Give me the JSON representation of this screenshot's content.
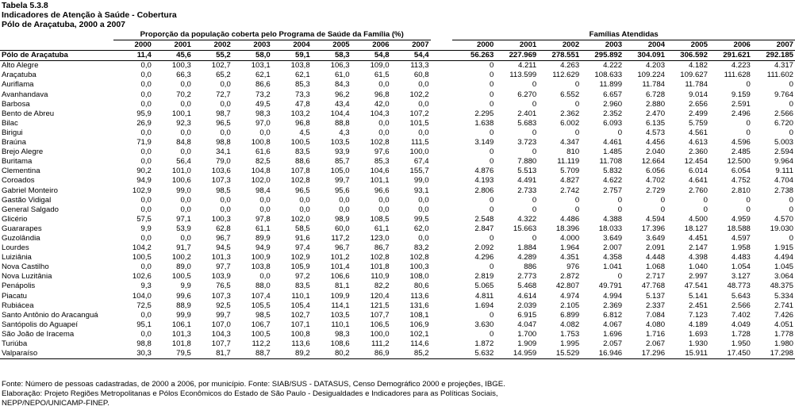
{
  "header": {
    "table_number": "Tabela 5.3.8",
    "title": "Indicadores de Atenção à Saúde - Cobertura",
    "subtitle": "Pólo de Araçatuba, 2000 a 2007"
  },
  "table": {
    "group1_title": "Proporção da população coberta pelo Programa de Saúde da Família (%)",
    "group2_title": "Famílias Atendidas",
    "years": [
      "2000",
      "2001",
      "2002",
      "2003",
      "2004",
      "2005",
      "2006",
      "2007"
    ],
    "total": {
      "name": "Pólo de Araçatuba",
      "pct": [
        "11,4",
        "45,6",
        "55,2",
        "58,0",
        "59,1",
        "58,3",
        "54,8",
        "54,4"
      ],
      "fam": [
        "56.263",
        "227.969",
        "278.551",
        "295.892",
        "304.091",
        "306.592",
        "291.621",
        "292.185"
      ]
    },
    "rows": [
      {
        "name": "Alto Alegre",
        "pct": [
          "0,0",
          "100,3",
          "102,7",
          "103,1",
          "103,8",
          "106,3",
          "109,0",
          "113,3"
        ],
        "fam": [
          "0",
          "4.211",
          "4.263",
          "4.222",
          "4.203",
          "4.182",
          "4.223",
          "4.317"
        ]
      },
      {
        "name": "Araçatuba",
        "pct": [
          "0,0",
          "66,3",
          "65,2",
          "62,1",
          "62,1",
          "61,0",
          "61,5",
          "60,8"
        ],
        "fam": [
          "0",
          "113.599",
          "112.629",
          "108.633",
          "109.224",
          "109.627",
          "111.628",
          "111.602"
        ]
      },
      {
        "name": "Auriflama",
        "pct": [
          "0,0",
          "0,0",
          "0,0",
          "86,6",
          "85,3",
          "84,3",
          "0,0",
          "0,0"
        ],
        "fam": [
          "0",
          "0",
          "0",
          "11.899",
          "11.784",
          "11.784",
          "0",
          "0"
        ]
      },
      {
        "name": "Avanhandava",
        "pct": [
          "0,0",
          "70,2",
          "72,7",
          "73,2",
          "73,3",
          "96,2",
          "96,8",
          "102,2"
        ],
        "fam": [
          "0",
          "6.270",
          "6.552",
          "6.657",
          "6.728",
          "9.014",
          "9.159",
          "9.764"
        ]
      },
      {
        "name": "Barbosa",
        "pct": [
          "0,0",
          "0,0",
          "0,0",
          "49,5",
          "47,8",
          "43,4",
          "42,0",
          "0,0"
        ],
        "fam": [
          "0",
          "0",
          "0",
          "2.960",
          "2.880",
          "2.656",
          "2.591",
          "0"
        ]
      },
      {
        "name": "Bento de Abreu",
        "pct": [
          "95,9",
          "100,1",
          "98,7",
          "98,3",
          "103,2",
          "104,4",
          "104,3",
          "107,2"
        ],
        "fam": [
          "2.295",
          "2.401",
          "2.362",
          "2.352",
          "2.470",
          "2.499",
          "2.496",
          "2.566"
        ]
      },
      {
        "name": "Bilac",
        "pct": [
          "26,9",
          "92,3",
          "96,5",
          "97,0",
          "96,8",
          "88,8",
          "0,0",
          "101,5"
        ],
        "fam": [
          "1.638",
          "5.683",
          "6.002",
          "6.093",
          "6.135",
          "5.759",
          "0",
          "6.720"
        ]
      },
      {
        "name": "Birigui",
        "pct": [
          "0,0",
          "0,0",
          "0,0",
          "0,0",
          "4,5",
          "4,3",
          "0,0",
          "0,0"
        ],
        "fam": [
          "0",
          "0",
          "0",
          "0",
          "4.573",
          "4.561",
          "0",
          "0"
        ]
      },
      {
        "name": "Braúna",
        "pct": [
          "71,9",
          "84,8",
          "98,8",
          "100,8",
          "100,5",
          "103,5",
          "102,8",
          "111,5"
        ],
        "fam": [
          "3.149",
          "3.723",
          "4.347",
          "4.461",
          "4.456",
          "4.613",
          "4.596",
          "5.003"
        ]
      },
      {
        "name": "Brejo Alegre",
        "pct": [
          "0,0",
          "0,0",
          "34,1",
          "61,6",
          "83,5",
          "93,9",
          "97,6",
          "100,0"
        ],
        "fam": [
          "0",
          "0",
          "810",
          "1.485",
          "2.040",
          "2.360",
          "2.485",
          "2.594"
        ]
      },
      {
        "name": "Buritama",
        "pct": [
          "0,0",
          "56,4",
          "79,0",
          "82,5",
          "88,6",
          "85,7",
          "85,3",
          "67,4"
        ],
        "fam": [
          "0",
          "7.880",
          "11.119",
          "11.708",
          "12.664",
          "12.454",
          "12.500",
          "9.964"
        ]
      },
      {
        "name": "Clementina",
        "pct": [
          "90,2",
          "101,0",
          "103,6",
          "104,8",
          "107,8",
          "105,0",
          "104,6",
          "155,7"
        ],
        "fam": [
          "4.876",
          "5.513",
          "5.709",
          "5.832",
          "6.056",
          "6.014",
          "6.054",
          "9.111"
        ]
      },
      {
        "name": "Coroados",
        "pct": [
          "94,9",
          "100,6",
          "107,3",
          "102,0",
          "102,8",
          "99,7",
          "101,1",
          "99,0"
        ],
        "fam": [
          "4.193",
          "4.491",
          "4.827",
          "4.622",
          "4.702",
          "4.641",
          "4.752",
          "4.704"
        ]
      },
      {
        "name": "Gabriel Monteiro",
        "pct": [
          "102,9",
          "99,0",
          "98,5",
          "98,4",
          "96,5",
          "95,6",
          "96,6",
          "93,1"
        ],
        "fam": [
          "2.806",
          "2.733",
          "2.742",
          "2.757",
          "2.729",
          "2.760",
          "2.810",
          "2.738"
        ]
      },
      {
        "name": "Gastão Vidigal",
        "pct": [
          "0,0",
          "0,0",
          "0,0",
          "0,0",
          "0,0",
          "0,0",
          "0,0",
          "0,0"
        ],
        "fam": [
          "0",
          "0",
          "0",
          "0",
          "0",
          "0",
          "0",
          "0"
        ]
      },
      {
        "name": "General Salgado",
        "pct": [
          "0,0",
          "0,0",
          "0,0",
          "0,0",
          "0,0",
          "0,0",
          "0,0",
          "0,0"
        ],
        "fam": [
          "0",
          "0",
          "0",
          "0",
          "0",
          "0",
          "0",
          "0"
        ]
      },
      {
        "name": "Glicério",
        "pct": [
          "57,5",
          "97,1",
          "100,3",
          "97,8",
          "102,0",
          "98,9",
          "108,5",
          "99,5"
        ],
        "fam": [
          "2.548",
          "4.322",
          "4.486",
          "4.388",
          "4.594",
          "4.500",
          "4.959",
          "4.570"
        ]
      },
      {
        "name": "Guararapes",
        "pct": [
          "9,9",
          "53,9",
          "62,8",
          "61,1",
          "58,5",
          "60,0",
          "61,1",
          "62,0"
        ],
        "fam": [
          "2.847",
          "15.663",
          "18.396",
          "18.033",
          "17.396",
          "18.127",
          "18.588",
          "19.030"
        ]
      },
      {
        "name": "Guzolândia",
        "pct": [
          "0,0",
          "0,0",
          "96,7",
          "89,9",
          "91,6",
          "117,2",
          "123,0",
          "0,0"
        ],
        "fam": [
          "0",
          "0",
          "4.000",
          "3.649",
          "3.649",
          "4.451",
          "4.597",
          "0"
        ]
      },
      {
        "name": "Lourdes",
        "pct": [
          "104,2",
          "91,7",
          "94,5",
          "94,9",
          "97,4",
          "96,7",
          "86,7",
          "83,2"
        ],
        "fam": [
          "2.092",
          "1.884",
          "1.964",
          "2.007",
          "2.091",
          "2.147",
          "1.958",
          "1.915"
        ]
      },
      {
        "name": "Luiziânia",
        "pct": [
          "100,5",
          "100,2",
          "101,3",
          "100,9",
          "102,9",
          "101,2",
          "102,8",
          "102,8"
        ],
        "fam": [
          "4.296",
          "4.289",
          "4.351",
          "4.358",
          "4.448",
          "4.398",
          "4.483",
          "4.494"
        ]
      },
      {
        "name": "Nova Castilho",
        "pct": [
          "0,0",
          "89,0",
          "97,7",
          "103,8",
          "105,9",
          "101,4",
          "101,8",
          "100,3"
        ],
        "fam": [
          "0",
          "886",
          "976",
          "1.041",
          "1.068",
          "1.040",
          "1.054",
          "1.045"
        ]
      },
      {
        "name": "Nova Luzitânia",
        "pct": [
          "102,6",
          "100,5",
          "103,9",
          "0,0",
          "97,2",
          "106,6",
          "110,9",
          "108,0"
        ],
        "fam": [
          "2.819",
          "2.773",
          "2.872",
          "0",
          "2.717",
          "2.997",
          "3.127",
          "3.064"
        ]
      },
      {
        "name": "Penápolis",
        "pct": [
          "9,3",
          "9,9",
          "76,5",
          "88,0",
          "83,5",
          "81,1",
          "82,2",
          "80,6"
        ],
        "fam": [
          "5.065",
          "5.468",
          "42.807",
          "49.791",
          "47.768",
          "47.541",
          "48.773",
          "48.375"
        ]
      },
      {
        "name": "Piacatu",
        "pct": [
          "104,0",
          "99,6",
          "107,3",
          "107,4",
          "110,1",
          "109,9",
          "120,4",
          "113,6"
        ],
        "fam": [
          "4.811",
          "4.614",
          "4.974",
          "4.994",
          "5.137",
          "5.141",
          "5.643",
          "5.334"
        ]
      },
      {
        "name": "Rubiácea",
        "pct": [
          "72,5",
          "88,9",
          "92,5",
          "105,5",
          "105,4",
          "114,1",
          "121,5",
          "131,6"
        ],
        "fam": [
          "1.694",
          "2.039",
          "2.105",
          "2.369",
          "2.337",
          "2.451",
          "2.566",
          "2.741"
        ]
      },
      {
        "name": "Santo Antônio do Aracanguá",
        "pct": [
          "0,0",
          "99,9",
          "99,7",
          "98,5",
          "102,7",
          "103,5",
          "107,7",
          "108,1"
        ],
        "fam": [
          "0",
          "6.915",
          "6.899",
          "6.812",
          "7.084",
          "7.123",
          "7.402",
          "7.426"
        ]
      },
      {
        "name": "Santópolis do Aguapeí",
        "pct": [
          "95,1",
          "106,1",
          "107,0",
          "106,7",
          "107,1",
          "110,1",
          "106,5",
          "106,9"
        ],
        "fam": [
          "3.630",
          "4.047",
          "4.082",
          "4.067",
          "4.080",
          "4.189",
          "4.049",
          "4.051"
        ]
      },
      {
        "name": "São João de Iracema",
        "pct": [
          "0,0",
          "101,3",
          "104,3",
          "100,5",
          "100,8",
          "98,3",
          "100,0",
          "102,1"
        ],
        "fam": [
          "0",
          "1.700",
          "1.753",
          "1.696",
          "1.716",
          "1.693",
          "1.728",
          "1.778"
        ]
      },
      {
        "name": "Turiúba",
        "pct": [
          "98,8",
          "101,8",
          "107,7",
          "112,2",
          "113,6",
          "108,6",
          "111,2",
          "114,6"
        ],
        "fam": [
          "1.872",
          "1.909",
          "1.995",
          "2.057",
          "2.067",
          "1.930",
          "1.950",
          "1.980"
        ]
      },
      {
        "name": "Valparaíso",
        "pct": [
          "30,3",
          "79,5",
          "81,7",
          "88,7",
          "89,2",
          "80,2",
          "86,9",
          "85,2"
        ],
        "fam": [
          "5.632",
          "14.959",
          "15.529",
          "16.946",
          "17.296",
          "15.911",
          "17.450",
          "17.298"
        ]
      }
    ]
  },
  "footer": {
    "source": "Fonte: Número de pessoas cadastradas, de 2000 a 2006, por município. Fonte: SIAB/SUS - DATASUS, Censo Demográfico 2000 e projeções, IBGE.",
    "credit_line1": "Elaboração: Projeto Regiões Metropolitanas e Pólos Econômicos do Estado de São Paulo - Desigualdades e Indicadores para as Políticas Sociais,",
    "credit_line2": "NEPP/NEPO/UNICAMP-FINEP."
  }
}
